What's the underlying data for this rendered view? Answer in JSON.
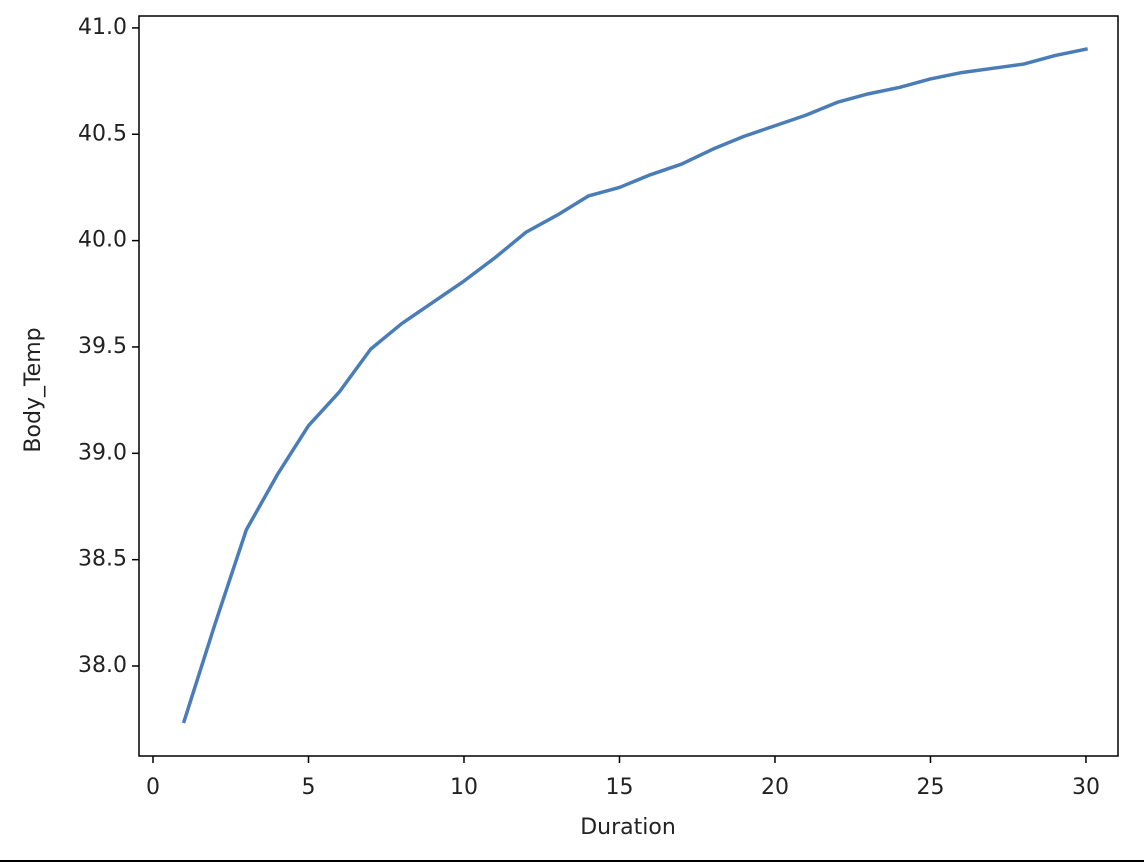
{
  "chart_data": {
    "type": "line",
    "x_label": "Duration",
    "y_label": "Body_Temp",
    "x": [
      1,
      2,
      3,
      4,
      5,
      6,
      7,
      8,
      9,
      10,
      11,
      12,
      13,
      14,
      15,
      16,
      17,
      18,
      19,
      20,
      21,
      22,
      23,
      24,
      25,
      26,
      27,
      28,
      29,
      30
    ],
    "values": [
      37.74,
      38.2,
      38.64,
      38.9,
      39.13,
      39.29,
      39.49,
      39.61,
      39.71,
      39.81,
      39.92,
      40.04,
      40.12,
      40.21,
      40.25,
      40.31,
      40.36,
      40.43,
      40.49,
      40.54,
      40.59,
      40.65,
      40.69,
      40.72,
      40.76,
      40.79,
      40.81,
      40.83,
      40.87,
      40.9
    ],
    "color": "#4a7db8",
    "xlim": [
      -0.45,
      31.03
    ],
    "xticks": [
      0,
      5,
      10,
      15,
      20,
      25,
      30
    ],
    "ylim": [
      37.577,
      41.056
    ],
    "yticks": [
      {
        "value": 38,
        "label": "38.0"
      },
      38.5,
      {
        "value": 39,
        "label": "39.0"
      },
      39.5,
      {
        "value": 40,
        "label": "40.0"
      },
      40.5,
      {
        "value": 41,
        "label": "41.0"
      }
    ],
    "grid": false
  }
}
